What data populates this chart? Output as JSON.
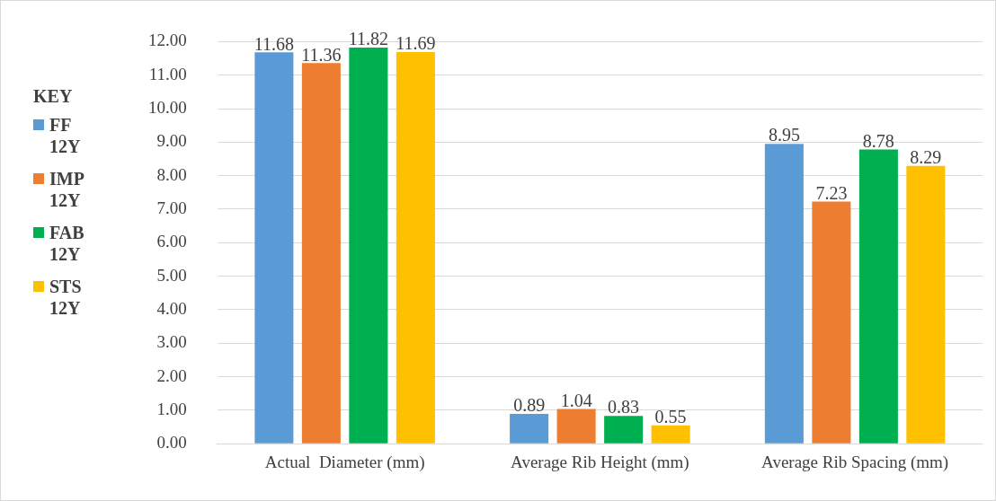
{
  "chart_data": {
    "type": "bar",
    "categories": [
      "Actual  Diameter (mm)",
      "Average Rib Height (mm)",
      "Average Rib Spacing (mm)"
    ],
    "series": [
      {
        "name": "FF 12Y",
        "color": "#5b9bd5",
        "values": [
          11.68,
          0.89,
          8.95
        ]
      },
      {
        "name": "IMP 12Y",
        "color": "#ed7d31",
        "values": [
          11.36,
          1.04,
          7.23
        ]
      },
      {
        "name": "FAB 12Y",
        "color": "#00b050",
        "values": [
          11.82,
          0.83,
          8.78
        ]
      },
      {
        "name": "STS 12Y",
        "color": "#ffc000",
        "values": [
          11.69,
          0.55,
          8.29
        ]
      }
    ],
    "ylim": [
      0,
      12
    ],
    "yticks": [
      {
        "value": 0,
        "label": "0.00"
      },
      {
        "value": 1,
        "label": "1.00"
      },
      {
        "value": 2,
        "label": "2.00"
      },
      {
        "value": 3,
        "label": "3.00"
      },
      {
        "value": 4,
        "label": "4.00"
      },
      {
        "value": 5,
        "label": "5.00"
      },
      {
        "value": 6,
        "label": "6.00"
      },
      {
        "value": 7,
        "label": "7.00"
      },
      {
        "value": 8,
        "label": "8.00"
      },
      {
        "value": 9,
        "label": "9.00"
      },
      {
        "value": 10,
        "label": "10.00"
      },
      {
        "value": 11,
        "label": "11.00"
      },
      {
        "value": 12,
        "label": "12.00"
      }
    ],
    "grid": "y",
    "legend": "left",
    "legend_title": "KEY",
    "data_labels": true
  }
}
